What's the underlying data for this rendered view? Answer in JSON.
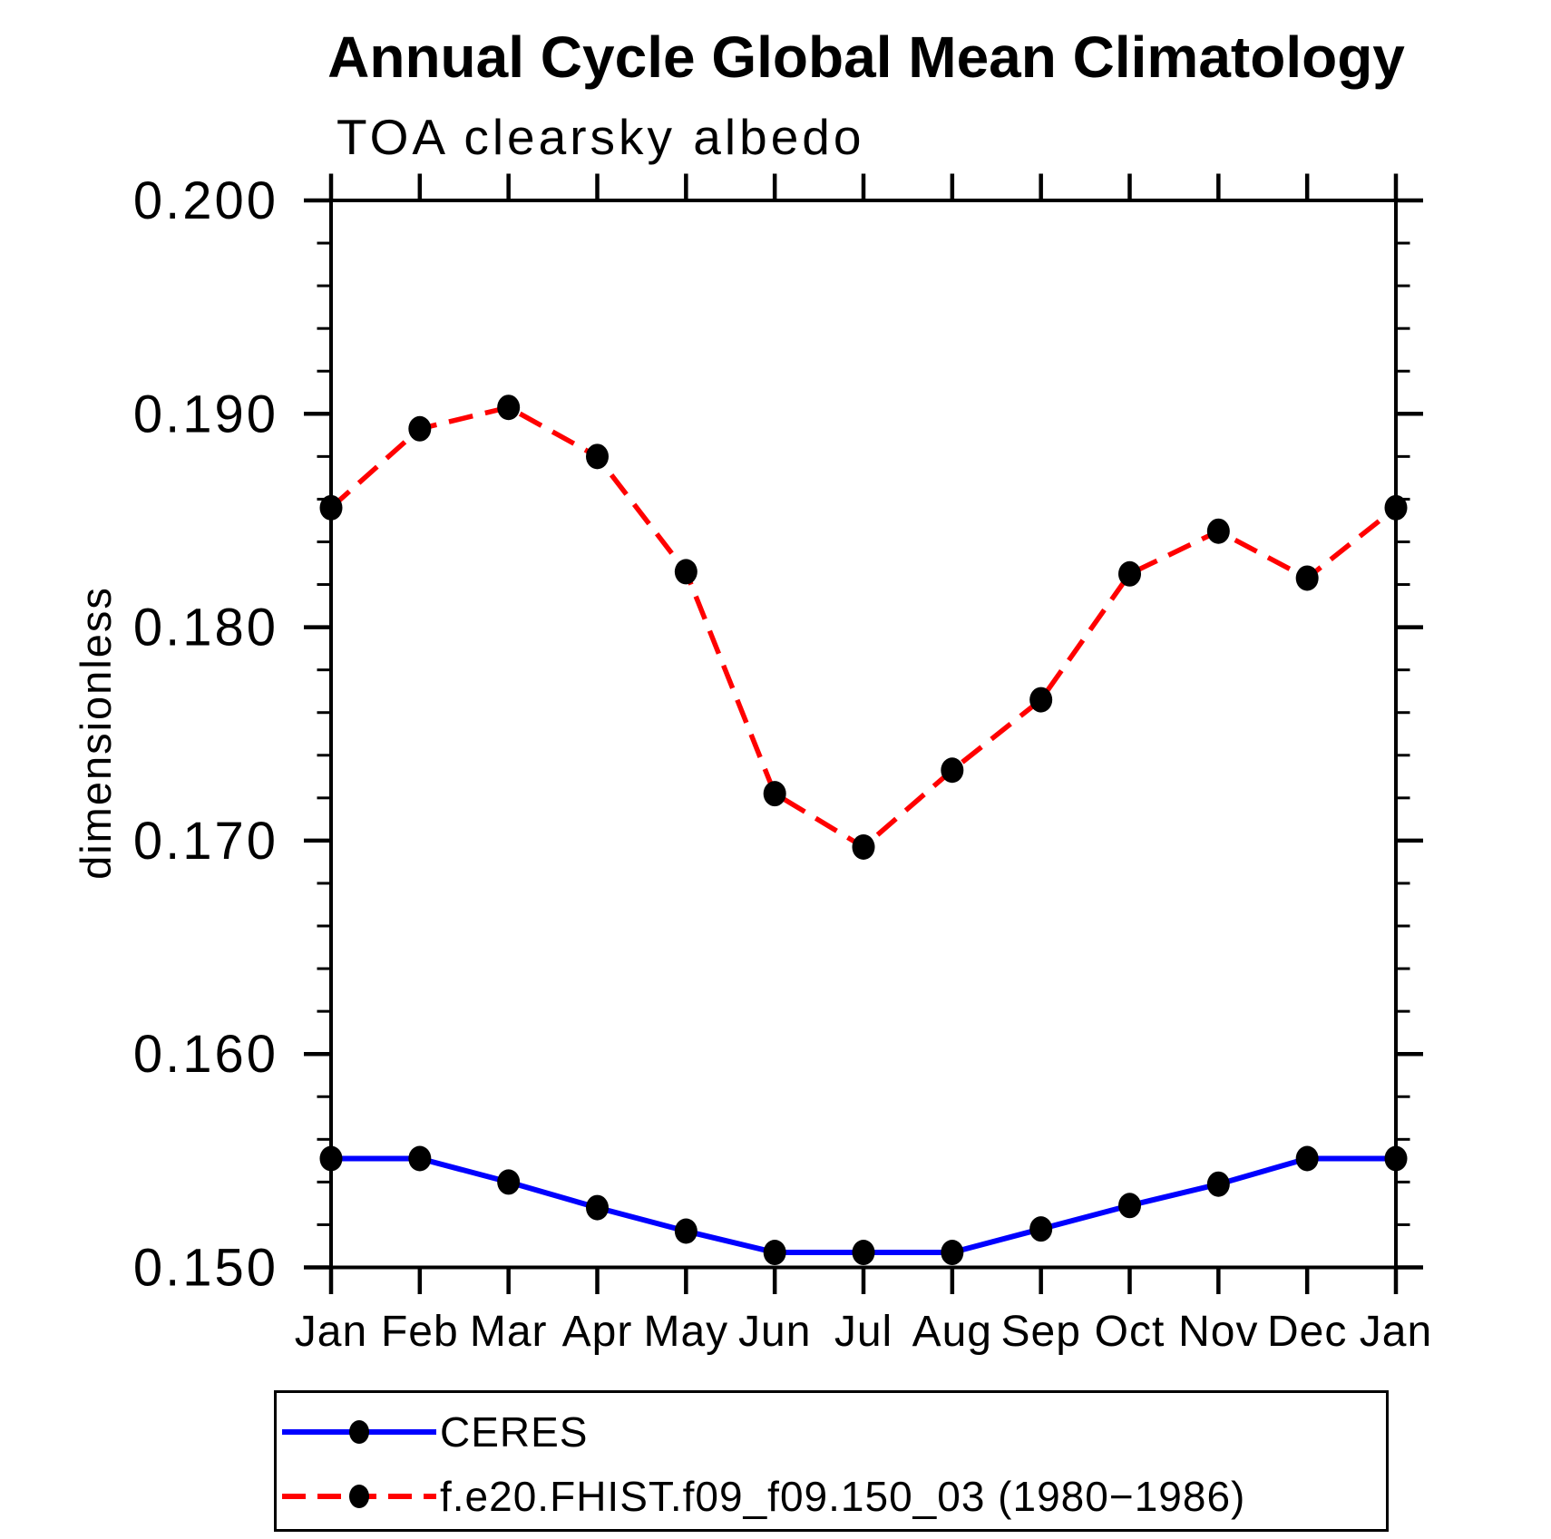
{
  "page_background": "#ffffff",
  "axis_color": "#000000",
  "chart_data": {
    "type": "line",
    "title": "Annual Cycle Global Mean Climatology",
    "subtitle": "TOA clearsky albedo",
    "xlabel": "",
    "ylabel": "dimensionless",
    "categories": [
      "Jan",
      "Feb",
      "Mar",
      "Apr",
      "May",
      "Jun",
      "Jul",
      "Aug",
      "Sep",
      "Oct",
      "Nov",
      "Dec",
      "Jan"
    ],
    "ylim": [
      0.15,
      0.2
    ],
    "y_major_ticks": [
      0.15,
      0.16,
      0.17,
      0.18,
      0.19,
      0.2
    ],
    "y_major_tick_labels": [
      "0.150",
      "0.160",
      "0.170",
      "0.180",
      "0.190",
      "0.200"
    ],
    "y_minor_tick_step": 0.002,
    "grid": false,
    "legend_position": "bottom",
    "marker_color": "#000000",
    "series": [
      {
        "name": "CERES",
        "color": "#0000ff",
        "line_style": "solid",
        "marker": "circle",
        "values": [
          0.1551,
          0.1551,
          0.154,
          0.1528,
          0.1517,
          0.1507,
          0.1507,
          0.1507,
          0.1518,
          0.1529,
          0.1539,
          0.1551,
          0.1551
        ]
      },
      {
        "name": "f.e20.FHIST.f09_f09.150_03 (1980−1986)",
        "color": "#ff0000",
        "line_style": "dashed",
        "marker": "circle",
        "values": [
          0.1856,
          0.1893,
          0.1903,
          0.188,
          0.1826,
          0.1722,
          0.1697,
          0.1733,
          0.1766,
          0.1825,
          0.1845,
          0.1823,
          0.1856
        ]
      }
    ]
  }
}
